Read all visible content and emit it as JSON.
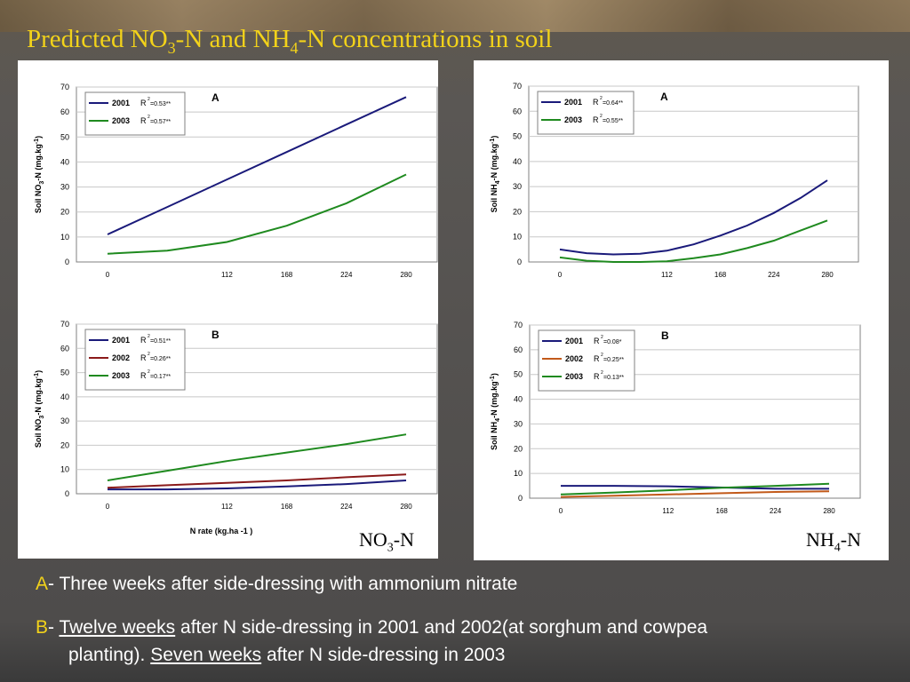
{
  "slide": {
    "title_parts": [
      "Predicted NO",
      "3",
      "-N and NH",
      "4",
      "-N concentrations in soil"
    ],
    "title_color": "#f2d21a"
  },
  "labels": {
    "no3": [
      "NO",
      "3",
      "-N"
    ],
    "nh4": [
      "NH",
      "4",
      "-N"
    ]
  },
  "captions": {
    "a": {
      "letter": "A",
      "text": "- Three weeks after side-dressing with ammonium nitrate"
    },
    "b": {
      "letter": "B",
      "dash": "- ",
      "u1": "Twelve weeks",
      "t1": " after N side-dressing in 2001 and 2002(at sorghum and cowpea",
      "t2": "planting).   ",
      "u2": "Seven weeks",
      "t3": " after N side-dressing in 2003"
    }
  },
  "chart_data": [
    {
      "type": "line",
      "panel_letter": "A",
      "ylabel": {
        "pre": "Soil NO",
        "sub": "3",
        "mid": "-N (mg.kg",
        "sup": "-1",
        "post": ")"
      },
      "xlabel": "",
      "x_ticks": [
        "0",
        "112",
        "168",
        "224",
        "280"
      ],
      "x": [
        0,
        56,
        112,
        168,
        224,
        280
      ],
      "ylim": [
        0,
        70
      ],
      "y_ticks": [
        0,
        10,
        20,
        30,
        40,
        50,
        60,
        70
      ],
      "grid": true,
      "legend": "top-left",
      "series": [
        {
          "name": "2001",
          "r2": "=0.53**",
          "color": "#1a1a7a",
          "values": [
            11,
            22,
            33,
            44,
            55,
            66
          ]
        },
        {
          "name": "2003",
          "r2": "=0.57**",
          "color": "#1f8a1f",
          "values": [
            3.3,
            4.5,
            8,
            14.5,
            23.5,
            35
          ]
        }
      ]
    },
    {
      "type": "line",
      "panel_letter": "A",
      "ylabel": {
        "pre": "Soil NH",
        "sub": "4",
        "mid": "-N (mg.kg",
        "sup": "-1",
        "post": ")"
      },
      "xlabel": "",
      "x_ticks": [
        "0",
        "112",
        "168",
        "224",
        "280"
      ],
      "x": [
        0,
        28,
        56,
        84,
        112,
        140,
        168,
        196,
        224,
        252,
        280
      ],
      "ylim": [
        0,
        70
      ],
      "y_ticks": [
        0,
        10,
        20,
        30,
        40,
        50,
        60,
        70
      ],
      "grid": true,
      "legend": "top-left",
      "series": [
        {
          "name": "2001",
          "r2": "=0.64**",
          "color": "#1a1a7a",
          "values": [
            5,
            3.5,
            3,
            3.3,
            4.5,
            7,
            10.5,
            14.5,
            19.5,
            25.5,
            32.5
          ]
        },
        {
          "name": "2003",
          "r2": "=0.55**",
          "color": "#1f8a1f",
          "values": [
            1.8,
            0.5,
            0,
            0,
            0.3,
            1.5,
            3,
            5.5,
            8.5,
            12.5,
            16.5
          ]
        }
      ]
    },
    {
      "type": "line",
      "panel_letter": "B",
      "ylabel": {
        "pre": "Soil NO",
        "sub": "3",
        "mid": "-N (mg.kg",
        "sup": "-1",
        "post": ")"
      },
      "xlabel": "N rate (kg.ha -1 )",
      "x_ticks": [
        "0",
        "112",
        "168",
        "224",
        "280"
      ],
      "x": [
        0,
        56,
        112,
        168,
        224,
        280
      ],
      "ylim": [
        0,
        70
      ],
      "y_ticks": [
        0,
        10,
        20,
        30,
        40,
        50,
        60,
        70
      ],
      "grid": true,
      "legend": "top-left",
      "series": [
        {
          "name": "2001",
          "r2": "=0.51**",
          "color": "#1a1a7a",
          "values": [
            1.8,
            1.8,
            2.2,
            3,
            4,
            5.5
          ]
        },
        {
          "name": "2002",
          "r2": "=0.26**",
          "color": "#8b1a1a",
          "values": [
            2.5,
            3.5,
            4.5,
            5.5,
            6.8,
            8
          ]
        },
        {
          "name": "2003",
          "r2": "=0.17**",
          "color": "#1f8a1f",
          "values": [
            5.5,
            9.5,
            13.5,
            17,
            20.5,
            24.5
          ]
        }
      ]
    },
    {
      "type": "line",
      "panel_letter": "B",
      "ylabel": {
        "pre": "Soil NH",
        "sub": "4",
        "mid": "-N (mg.kg",
        "sup": "-1",
        "post": ")"
      },
      "xlabel": "",
      "x_ticks": [
        "0",
        "112",
        "168",
        "224",
        "280"
      ],
      "x": [
        0,
        56,
        112,
        168,
        224,
        280
      ],
      "ylim": [
        0,
        70
      ],
      "y_ticks": [
        0,
        10,
        20,
        30,
        40,
        50,
        60,
        70
      ],
      "grid": true,
      "legend": "top-left",
      "series": [
        {
          "name": "2001",
          "r2": "=0.08*",
          "color": "#1a1a7a",
          "values": [
            5,
            5,
            4.8,
            4.3,
            3.8,
            3.8
          ]
        },
        {
          "name": "2002",
          "r2": "=0.25**",
          "color": "#c25a1a",
          "values": [
            0.5,
            1,
            1.5,
            2,
            2.5,
            2.8
          ]
        },
        {
          "name": "2003",
          "r2": "=0.13**",
          "color": "#1f8a1f",
          "values": [
            1.5,
            2.3,
            3.2,
            4.2,
            5,
            5.8
          ]
        }
      ]
    }
  ]
}
